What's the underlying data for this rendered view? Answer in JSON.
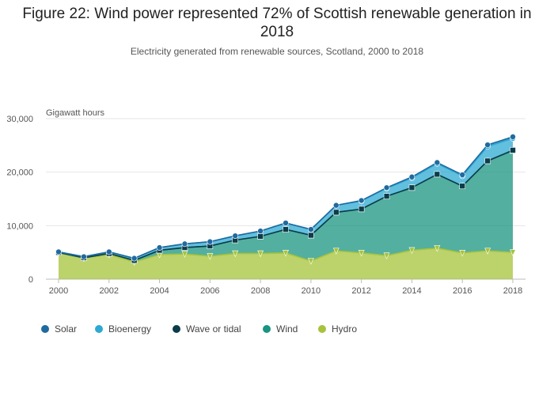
{
  "header": {
    "title": "Figure 22: Wind power represented 72% of Scottish renewable generation in 2018",
    "subtitle": "Electricity generated from renewable sources, Scotland, 2000 to 2018"
  },
  "chart_data": {
    "type": "area",
    "stacked": true,
    "title": "Figure 22: Wind power represented 72% of Scottish renewable generation in 2018",
    "subtitle": "Electricity generated from renewable sources, Scotland, 2000 to 2018",
    "ylabel": "Gigawatt hours",
    "xlabel": "",
    "ylim": [
      0,
      30000
    ],
    "yticks": [
      0,
      10000,
      20000,
      30000
    ],
    "ytick_labels": [
      "0",
      "10,000",
      "20,000",
      "30,000"
    ],
    "xticks": [
      2000,
      2002,
      2004,
      2006,
      2008,
      2010,
      2012,
      2014,
      2016,
      2018
    ],
    "x": [
      2000,
      2001,
      2002,
      2003,
      2004,
      2005,
      2006,
      2007,
      2008,
      2009,
      2010,
      2011,
      2012,
      2013,
      2014,
      2015,
      2016,
      2017,
      2018
    ],
    "legend_position": "bottom",
    "series": [
      {
        "name": "Hydro",
        "color": "#a6c33a",
        "marker": "triangle-down",
        "values": [
          4900,
          3900,
          4600,
          3200,
          4600,
          4700,
          4300,
          4800,
          4800,
          4900,
          3400,
          5300,
          4900,
          4400,
          5400,
          5800,
          4900,
          5300,
          5000
        ]
      },
      {
        "name": "Wind",
        "color": "#1a9480",
        "marker": "triangle-up",
        "values": [
          100,
          100,
          200,
          300,
          800,
          1200,
          1900,
          2500,
          3200,
          4400,
          4800,
          7200,
          8200,
          11100,
          11700,
          13800,
          12500,
          16800,
          19000
        ]
      },
      {
        "name": "Wave or tidal",
        "color": "#0b3c4b",
        "marker": "square",
        "values": [
          0,
          0,
          0,
          0,
          0,
          0,
          0,
          0,
          0,
          0,
          0,
          0,
          0,
          0,
          0,
          0,
          0,
          0,
          100
        ]
      },
      {
        "name": "Bioenergy",
        "color": "#2ea9d3",
        "marker": "circle",
        "values": [
          100,
          200,
          300,
          400,
          500,
          700,
          800,
          800,
          1000,
          1200,
          1100,
          1300,
          1500,
          1500,
          1800,
          2000,
          1900,
          2700,
          2200
        ]
      },
      {
        "name": "Solar",
        "color": "#1f6aa0",
        "marker": "circle",
        "values": [
          0,
          0,
          0,
          0,
          0,
          0,
          0,
          0,
          0,
          0,
          0,
          0,
          100,
          100,
          200,
          200,
          200,
          300,
          300
        ]
      }
    ],
    "legend_order": [
      "Solar",
      "Bioenergy",
      "Wave or tidal",
      "Wind",
      "Hydro"
    ],
    "gridlines": true
  }
}
